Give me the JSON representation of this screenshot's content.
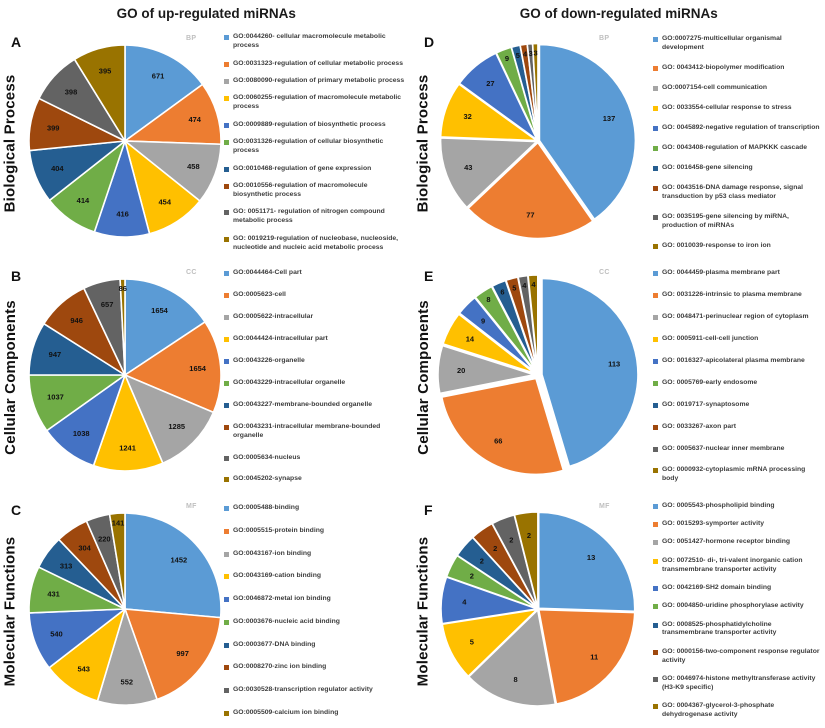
{
  "figure": {
    "left_title": "GO of up-regulated miRNAs",
    "right_title": "GO of down-regulated miRNAs"
  },
  "palette": [
    "#5B9BD5",
    "#ED7D31",
    "#A5A5A5",
    "#FFC000",
    "#4472C4",
    "#70AD47",
    "#255E91",
    "#9E480E",
    "#636363",
    "#997300"
  ],
  "chart_data": [
    {
      "type": "pie",
      "panel_letter": "A",
      "group_title": "GO of up-regulated miRNAs",
      "row_label": "Biological Process",
      "corner_tag": "BP",
      "legend_position": "right",
      "explode": 0,
      "categories": [
        "GO:0044260- cellular macromolecule metabolic process",
        "GO:0031323-regulation of cellular metabolic process",
        "GO:0080090-regulation of primary metabolic process",
        "GO:0060255-regulation of macromolecule metabolic process",
        "GO:0009889-regulation of biosynthetic process",
        "GO:0031326-regulation of cellular biosynthetic process",
        "GO:0010468-regulation of gene expression",
        "GO:0010556-regulation of macromolecule biosynthetic process",
        "GO: 0051171- regulation of nitrogen compound metabolic process",
        "GO: 0019219-regulation of nucleobase, nucleoside, nucleotide and nucleic acid metabolic process"
      ],
      "values": [
        671,
        474,
        458,
        454,
        416,
        414,
        404,
        399,
        398,
        395
      ]
    },
    {
      "type": "pie",
      "panel_letter": "B",
      "group_title": "GO of up-regulated miRNAs",
      "row_label": "Cellular Components",
      "corner_tag": "CC",
      "legend_position": "right",
      "explode": 0,
      "categories": [
        "GO:0044464-Cell part",
        "GO:0005623-cell",
        "GO:0005622-intracellular",
        "GO:0044424-intracellular part",
        "GO:0043226-organelle",
        "GO:0043229-intracellular organelle",
        "GO:0043227-membrane-bounded organelle",
        "GO:0043231-intracellular membrane-bounded organelle",
        "GO:0005634-nucleus",
        "GO:0045202-synapse"
      ],
      "values": [
        1654,
        1654,
        1285,
        1241,
        1038,
        1037,
        947,
        946,
        657,
        86
      ]
    },
    {
      "type": "pie",
      "panel_letter": "C",
      "group_title": "GO of up-regulated miRNAs",
      "row_label": "Molecular Functions",
      "corner_tag": "MF",
      "legend_position": "right",
      "explode": 0,
      "categories": [
        "GO:0005488-binding",
        "GO:0005515-protein binding",
        "GO:0043167-ion binding",
        "GO:0043169-cation binding",
        "GO:0046872-metal ion binding",
        "GO:0003676-nucleic acid binding",
        "GO:0003677-DNA binding",
        "GO:0008270-zinc ion binding",
        "GO:0030528-transcription regulator activity",
        "GO:0005509-calcium ion binding"
      ],
      "values": [
        1452,
        997,
        552,
        543,
        540,
        431,
        313,
        304,
        220,
        141
      ]
    },
    {
      "type": "pie",
      "panel_letter": "D",
      "group_title": "GO of down-regulated miRNAs",
      "row_label": "Biological Process",
      "corner_tag": "BP",
      "legend_position": "right",
      "explode": 1.5,
      "categories": [
        "GO:0007275-multicellular organismal development",
        "GO: 0043412-biopolymer modification",
        "GO:0007154-cell communication",
        "GO: 0033554-cellular response to stress",
        "GO: 0045892-negative regulation of transcription",
        "GO: 0043408-regulation of MAPKKK cascade",
        "GO: 0016458-gene silencing",
        "GO: 0043516-DNA damage response, signal transduction by p53 class mediator",
        "GO: 0035195-gene silencing by miRNA, production of miRNAs",
        "GO: 0010039-response to iron ion"
      ],
      "values": [
        137,
        77,
        43,
        32,
        27,
        9,
        5,
        4,
        3,
        3
      ]
    },
    {
      "type": "pie",
      "panel_letter": "E",
      "group_title": "GO of down-regulated miRNAs",
      "row_label": "Cellular Components",
      "corner_tag": "CC",
      "legend_position": "right",
      "explode": 4,
      "categories": [
        "GO: 0044459-plasma membrane part",
        "GO: 0031226-intrinsic to plasma membrane",
        "GO: 0048471-perinuclear region of cytoplasm",
        "GO: 0005911-cell-cell junction",
        "GO: 0016327-apicolateral plasma membrane",
        "GO: 0005769-early endosome",
        "GO: 0019717-synaptosome",
        "GO: 0033267-axon part",
        "GO: 0005637-nuclear inner membrane",
        "GO: 0000932-cytoplasmic mRNA processing body"
      ],
      "values": [
        113,
        66,
        20,
        14,
        9,
        8,
        6,
        5,
        4,
        4
      ]
    },
    {
      "type": "pie",
      "panel_letter": "F",
      "group_title": "GO of down-regulated miRNAs",
      "row_label": "Molecular Functions",
      "corner_tag": "MF",
      "legend_position": "right",
      "explode": 1,
      "categories": [
        "GO: 0005543-phospholipid binding",
        "GO: 0015293-symporter activity",
        "GO: 0051427-hormone receptor binding",
        "GO: 0072510- di-, tri-valent inorganic cation transmembrane transporter activity",
        "GO: 0042169-SH2 domain binding",
        "GO: 0004850-uridine phosphorylase activity",
        "GO: 0008525-phosphatidylcholine transmembrane transporter activity",
        "GO: 0000156-two-component response regulator activity",
        "GO: 0046974-histone methyltransferase activity (H3-K9 specific)",
        "GO: 0004367-glycerol-3-phosphate dehydrogenase activity"
      ],
      "values": [
        13,
        11,
        8,
        5,
        4,
        2,
        2,
        2,
        2,
        2
      ]
    }
  ]
}
